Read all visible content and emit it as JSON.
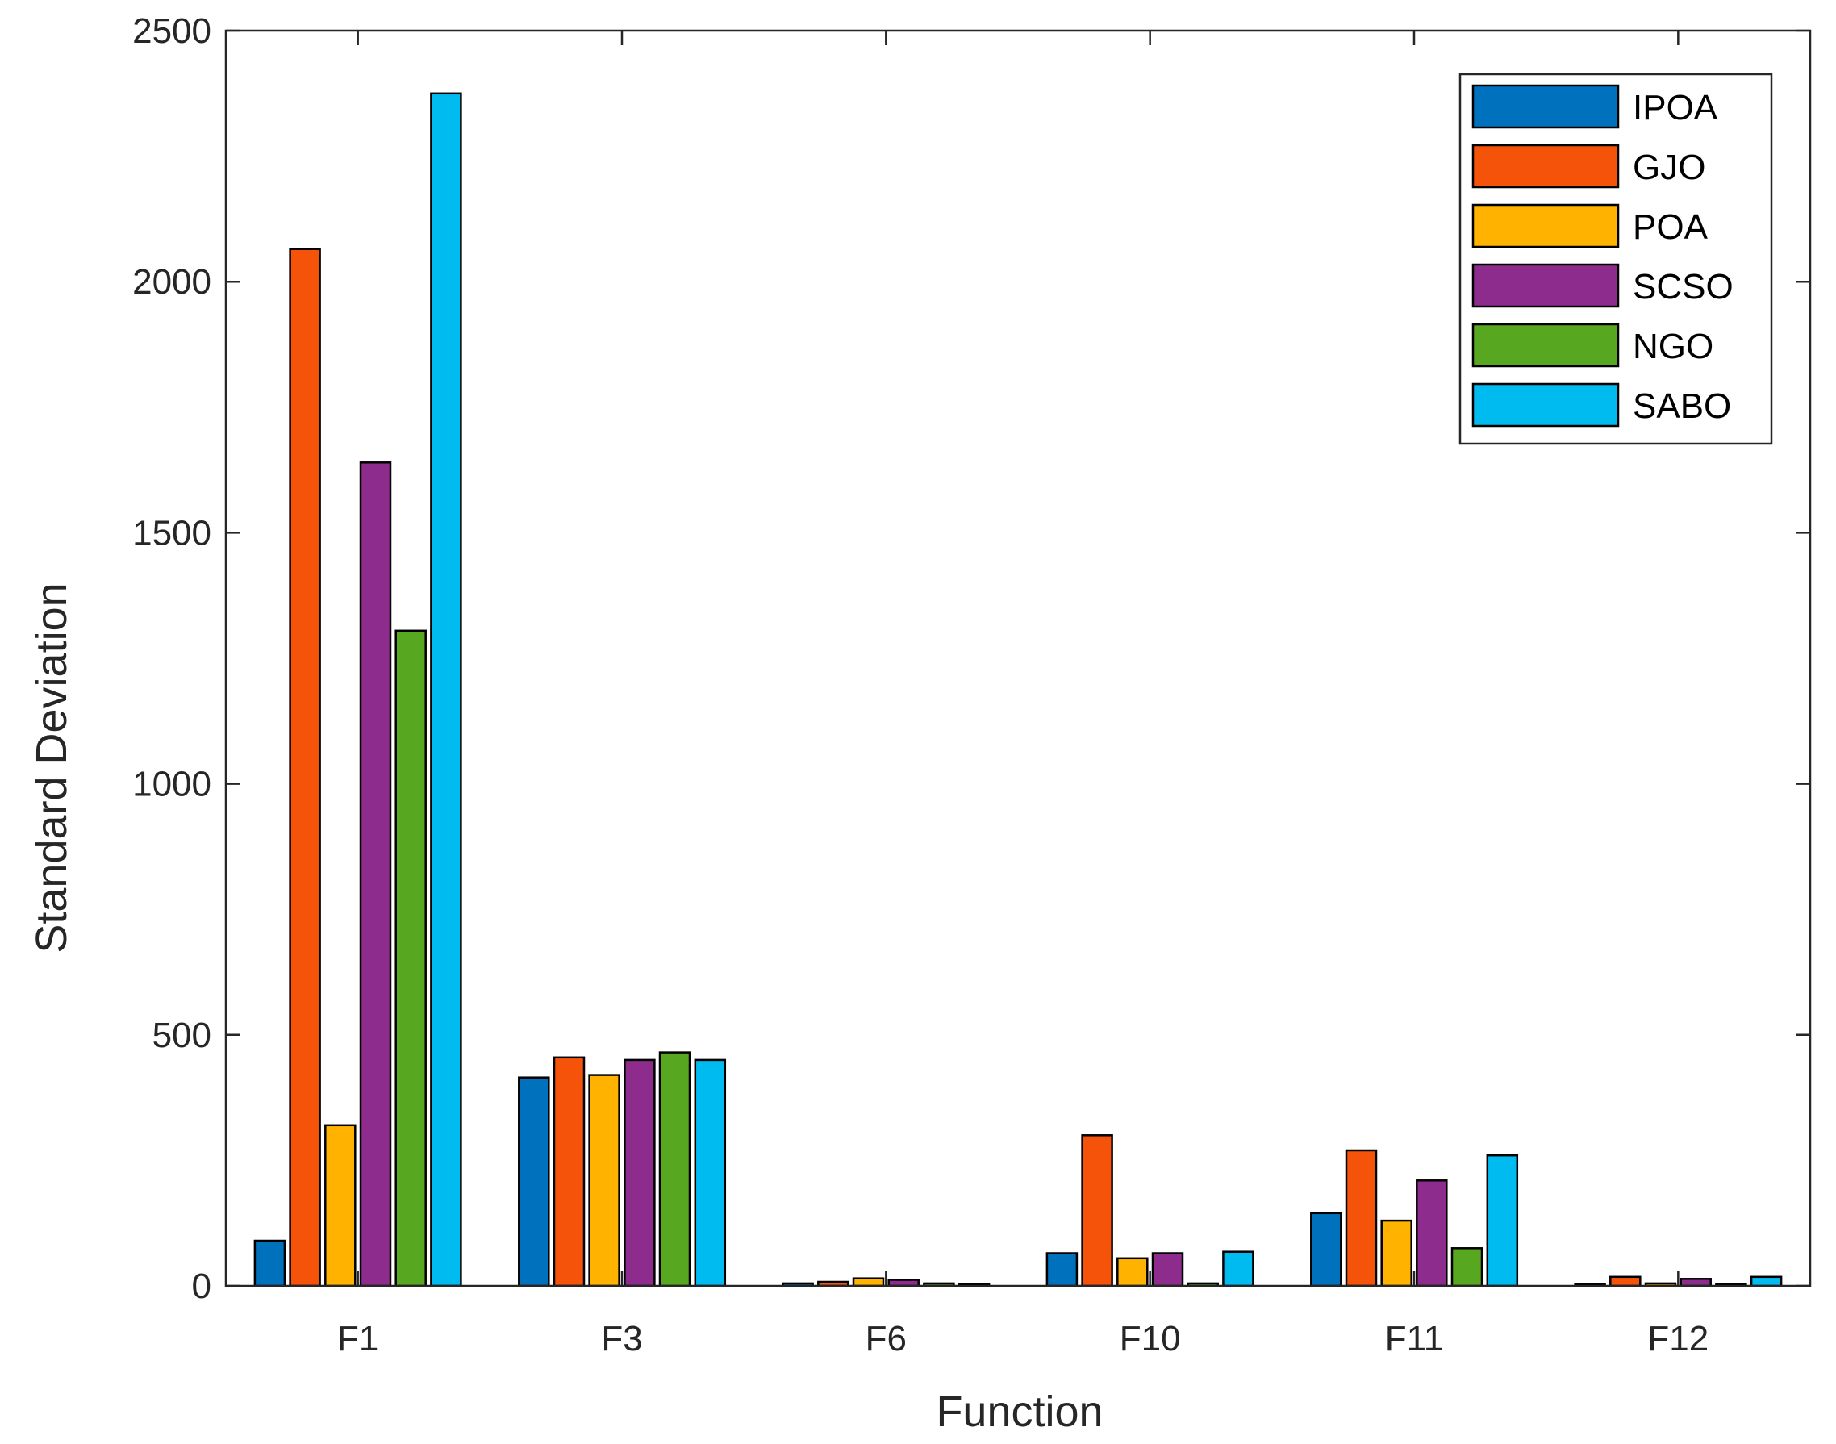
{
  "chart_data": {
    "type": "bar",
    "title": "",
    "xlabel": "Function",
    "ylabel": "Standard Deviation",
    "categories": [
      "F1",
      "F3",
      "F6",
      "F10",
      "F11",
      "F12"
    ],
    "ylim": [
      0,
      2500
    ],
    "yticks": [
      0,
      500,
      1000,
      1500,
      2000,
      2500
    ],
    "grid": false,
    "legend_position": "top-right",
    "series": [
      {
        "name": "IPOA",
        "color": "#0072BD",
        "values": [
          90,
          415,
          5,
          65,
          145,
          3
        ]
      },
      {
        "name": "GJO",
        "color": "#F5520A",
        "values": [
          2065,
          455,
          8,
          300,
          270,
          18
        ]
      },
      {
        "name": "POA",
        "color": "#FFB300",
        "values": [
          320,
          420,
          15,
          55,
          130,
          5
        ]
      },
      {
        "name": "SCSO",
        "color": "#8E2C8E",
        "values": [
          1640,
          450,
          12,
          65,
          210,
          14
        ]
      },
      {
        "name": "NGO",
        "color": "#57A820",
        "values": [
          1305,
          465,
          5,
          5,
          75,
          4
        ]
      },
      {
        "name": "SABO",
        "color": "#00BBF0",
        "values": [
          2375,
          450,
          4,
          68,
          260,
          18
        ]
      }
    ]
  }
}
